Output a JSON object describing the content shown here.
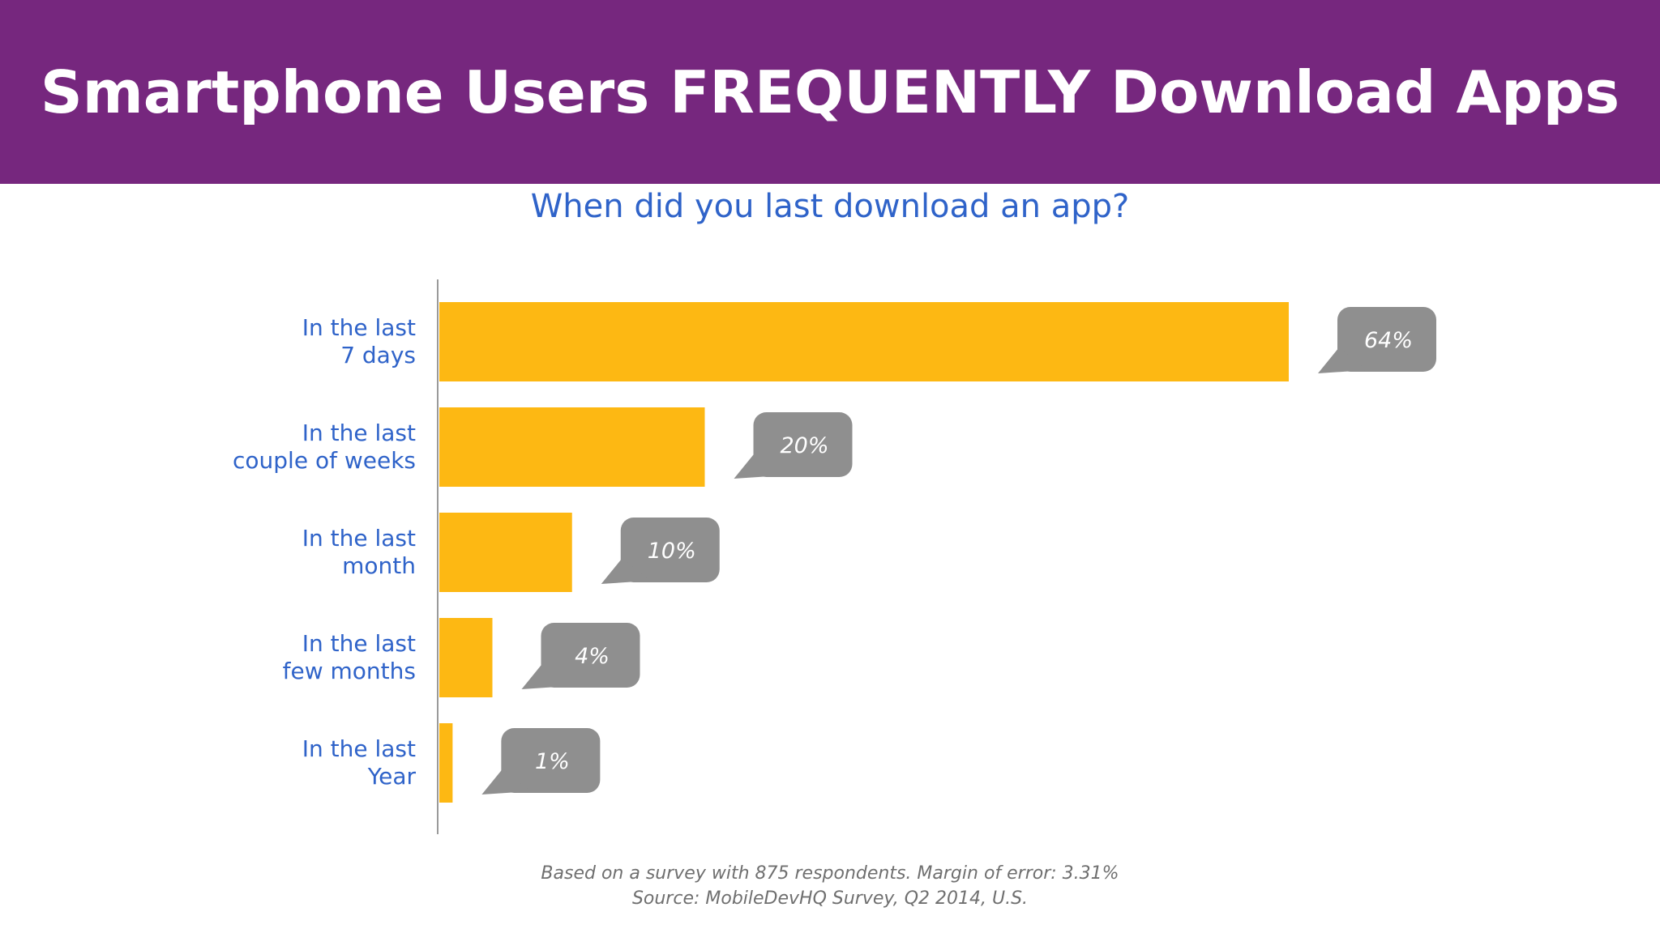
{
  "header": {
    "title": "Smartphone Users FREQUENTLY Download Apps"
  },
  "colors": {
    "banner": "#76277e",
    "bar": "#fdb813",
    "bubble": "#8f8f8f",
    "label": "#2f63c9"
  },
  "chart_data": {
    "type": "bar",
    "orientation": "horizontal",
    "title": "When did you last download an app?",
    "categories": [
      [
        "In the last",
        "7 days"
      ],
      [
        "In the last",
        "couple of weeks"
      ],
      [
        "In the last",
        "month"
      ],
      [
        "In the last",
        "few months"
      ],
      [
        "In the last",
        "Year"
      ]
    ],
    "values": [
      64,
      20,
      10,
      4,
      1
    ],
    "value_labels": [
      "64%",
      "20%",
      "10%",
      "4%",
      "1%"
    ],
    "unit": "%",
    "xlim": [
      0,
      64
    ],
    "grid": false,
    "legend": "none"
  },
  "footnote": {
    "line1": "Based on a survey with 875 respondents. Margin of error: 3.31%",
    "line2": "Source: MobileDevHQ Survey, Q2 2014, U.S."
  }
}
